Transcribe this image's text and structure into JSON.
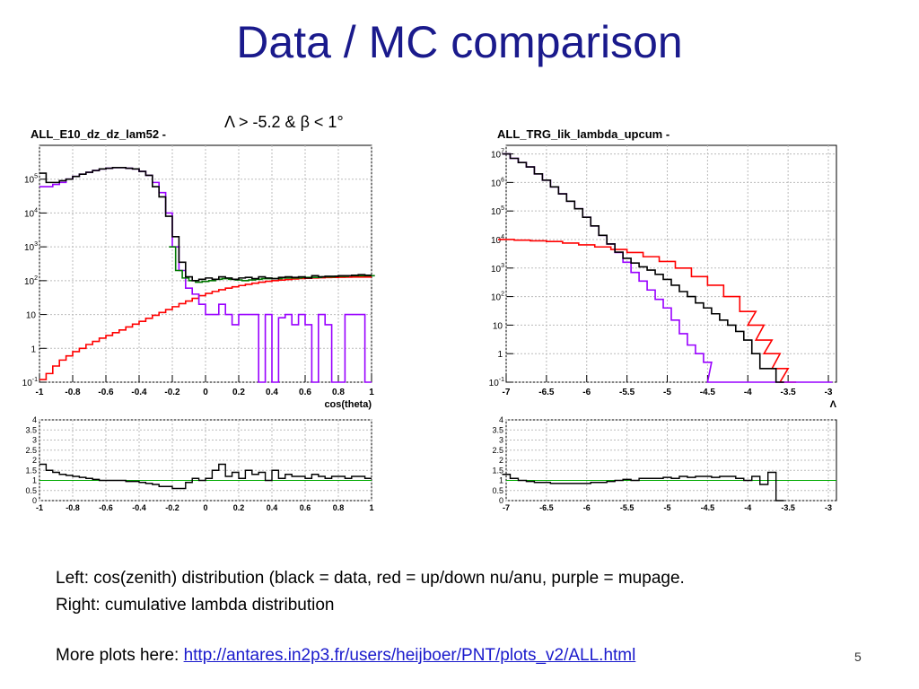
{
  "slide": {
    "title": "Data / MC comparison",
    "cut_label": "Λ > -5.2 & β < 1°",
    "caption_line1": "Left: cos(zenith) distribution (black = data, red = up/down nu/anu, purple = mupage.",
    "caption_line2": "Right: cumulative lambda distribution",
    "more_prefix": "More plots here: ",
    "more_link": "http://antares.in2p3.fr/users/heijboer/PNT/plots_v2/ALL.html",
    "page_number": "5"
  },
  "colors": {
    "title": "#1a1a8c",
    "data": "#000000",
    "neutrino": "#ff0000",
    "mupage": "#9900ff",
    "total": "#007700",
    "ratio_ref": "#00aa00"
  },
  "chart_data": [
    {
      "type": "line",
      "title": "ALL_E10_dz_dz_lam52 -",
      "xlabel": "cos(theta)",
      "scale_y": "log",
      "xlim": [
        -1,
        1
      ],
      "ylim": [
        0.1,
        1000000
      ],
      "x_ticks": [
        "-1",
        "-0.8",
        "-0.6",
        "-0.4",
        "-0.2",
        "0",
        "0.2",
        "0.4",
        "0.6",
        "0.8",
        "1"
      ],
      "y_ticks": [
        {
          "label": "10",
          "exp": "-1",
          "v": 0.1
        },
        {
          "label": "1",
          "exp": "",
          "v": 1
        },
        {
          "label": "10",
          "exp": "",
          "v": 10
        },
        {
          "label": "10",
          "exp": "2",
          "v": 100
        },
        {
          "label": "10",
          "exp": "3",
          "v": 1000
        },
        {
          "label": "10",
          "exp": "4",
          "v": 10000
        },
        {
          "label": "10",
          "exp": "5",
          "v": 100000
        }
      ],
      "grid": true,
      "series": [
        {
          "key": "red",
          "x": [
            -0.98,
            -0.94,
            -0.9,
            -0.86,
            -0.82,
            -0.78,
            -0.74,
            -0.7,
            -0.66,
            -0.62,
            -0.58,
            -0.54,
            -0.5,
            -0.46,
            -0.42,
            -0.38,
            -0.34,
            -0.3,
            -0.26,
            -0.22,
            -0.18,
            -0.14,
            -0.1,
            -0.06,
            -0.02,
            0.02,
            0.06,
            0.1,
            0.14,
            0.18,
            0.22,
            0.26,
            0.3,
            0.34,
            0.38,
            0.42,
            0.46,
            0.5,
            0.54,
            0.58,
            0.62,
            0.66,
            0.7,
            0.74,
            0.78,
            0.82,
            0.86,
            0.9,
            0.94,
            0.98
          ],
          "values": [
            0.12,
            0.18,
            0.3,
            0.45,
            0.6,
            0.8,
            1.0,
            1.3,
            1.6,
            2.0,
            2.4,
            2.9,
            3.5,
            4.3,
            5.2,
            6.3,
            7.7,
            9.5,
            11.5,
            14,
            17,
            21,
            25,
            30,
            36,
            42,
            48,
            54,
            60,
            66,
            72,
            78,
            84,
            90,
            96,
            100,
            104,
            108,
            112,
            116,
            118,
            120,
            122,
            124,
            125,
            126,
            127,
            128,
            128,
            128
          ]
        },
        {
          "key": "purple",
          "x": [
            -0.98,
            -0.94,
            -0.9,
            -0.86,
            -0.82,
            -0.78,
            -0.74,
            -0.7,
            -0.66,
            -0.62,
            -0.58,
            -0.54,
            -0.5,
            -0.46,
            -0.42,
            -0.38,
            -0.34,
            -0.3,
            -0.26,
            -0.22,
            -0.18,
            -0.14,
            -0.1,
            -0.06,
            -0.02,
            0.02,
            0.06,
            0.1,
            0.14,
            0.18,
            0.22,
            0.26,
            0.3,
            0.34,
            0.38,
            0.42,
            0.46,
            0.5,
            0.54,
            0.58,
            0.62,
            0.66,
            0.7,
            0.74,
            0.78,
            0.82,
            0.86,
            0.9,
            0.94,
            0.98
          ],
          "values": [
            60000,
            60000,
            70000,
            80000,
            100000,
            120000,
            140000,
            160000,
            180000,
            200000,
            210000,
            220000,
            220000,
            210000,
            200000,
            170000,
            130000,
            80000,
            40000,
            10000,
            1000,
            200,
            60,
            40,
            20,
            10,
            10,
            20,
            10,
            5,
            10,
            10,
            10,
            0.1,
            10,
            0.1,
            8,
            10,
            5,
            10,
            5,
            0.1,
            10,
            5,
            0.1,
            0.1,
            10,
            10,
            10,
            0.1
          ]
        },
        {
          "key": "green",
          "x": [
            -0.2,
            -0.16,
            -0.12,
            -0.08,
            -0.04,
            0,
            0.04,
            0.08,
            0.12,
            0.16,
            0.2,
            0.24,
            0.28,
            0.32,
            0.36,
            0.4,
            0.44,
            0.48,
            0.52,
            0.56,
            0.6,
            0.64,
            0.68,
            0.72,
            0.76,
            0.8,
            0.84,
            0.88,
            0.92,
            0.96,
            1.0
          ],
          "values": [
            1000,
            200,
            120,
            100,
            90,
            95,
            100,
            110,
            115,
            110,
            105,
            100,
            105,
            110,
            115,
            115,
            115,
            120,
            120,
            120,
            125,
            125,
            125,
            130,
            130,
            135,
            135,
            140,
            140,
            140,
            140
          ]
        },
        {
          "key": "black",
          "x": [
            -0.98,
            -0.94,
            -0.9,
            -0.86,
            -0.82,
            -0.78,
            -0.74,
            -0.7,
            -0.66,
            -0.62,
            -0.58,
            -0.54,
            -0.5,
            -0.46,
            -0.42,
            -0.38,
            -0.34,
            -0.3,
            -0.26,
            -0.22,
            -0.18,
            -0.14,
            -0.1,
            -0.06,
            -0.02,
            0.02,
            0.06,
            0.1,
            0.14,
            0.18,
            0.22,
            0.26,
            0.3,
            0.34,
            0.38,
            0.42,
            0.46,
            0.5,
            0.54,
            0.58,
            0.62,
            0.66,
            0.7,
            0.74,
            0.78,
            0.82,
            0.86,
            0.9,
            0.94,
            0.98
          ],
          "values": [
            150000,
            80000,
            80000,
            90000,
            100000,
            120000,
            140000,
            160000,
            180000,
            200000,
            210000,
            220000,
            220000,
            210000,
            200000,
            170000,
            130000,
            60000,
            30000,
            8000,
            2000,
            350,
            130,
            100,
            110,
            120,
            110,
            130,
            120,
            110,
            120,
            125,
            115,
            130,
            120,
            115,
            125,
            130,
            125,
            130,
            120,
            140,
            130,
            135,
            135,
            140,
            140,
            145,
            150,
            145
          ]
        }
      ],
      "ratio": {
        "ylim": [
          0,
          4
        ],
        "y_ticks": [
          "0",
          "0.5",
          "1",
          "1.5",
          "2",
          "2.5",
          "3",
          "3.5",
          "4"
        ],
        "x_ticks": [
          "-1",
          "-0.8",
          "-0.6",
          "-0.4",
          "-0.2",
          "0",
          "0.2",
          "0.4",
          "0.6",
          "0.8",
          "1"
        ],
        "x": [
          -0.98,
          -0.94,
          -0.9,
          -0.86,
          -0.82,
          -0.78,
          -0.74,
          -0.7,
          -0.66,
          -0.62,
          -0.58,
          -0.54,
          -0.5,
          -0.46,
          -0.42,
          -0.38,
          -0.34,
          -0.3,
          -0.26,
          -0.22,
          -0.18,
          -0.14,
          -0.1,
          -0.06,
          -0.02,
          0.02,
          0.06,
          0.1,
          0.14,
          0.18,
          0.22,
          0.26,
          0.3,
          0.34,
          0.38,
          0.42,
          0.46,
          0.5,
          0.54,
          0.58,
          0.62,
          0.66,
          0.7,
          0.74,
          0.78,
          0.82,
          0.86,
          0.9,
          0.94,
          0.98
        ],
        "values": [
          1.8,
          1.5,
          1.4,
          1.3,
          1.25,
          1.2,
          1.15,
          1.1,
          1.05,
          1.0,
          1.0,
          1.0,
          1.0,
          0.95,
          0.95,
          0.9,
          0.85,
          0.8,
          0.7,
          0.7,
          0.6,
          0.6,
          0.9,
          1.1,
          1.0,
          1.1,
          1.5,
          1.8,
          1.2,
          1.4,
          1.1,
          1.5,
          1.3,
          1.4,
          1.0,
          1.5,
          1.1,
          1.3,
          1.2,
          1.2,
          1.1,
          1.3,
          1.2,
          1.1,
          1.2,
          1.2,
          1.1,
          1.2,
          1.2,
          1.1
        ]
      }
    },
    {
      "type": "line",
      "title": "ALL_TRG_lik_lambda_upcum -",
      "xlabel": "Λ",
      "scale_y": "log",
      "xlim": [
        -7,
        -2.9
      ],
      "ylim": [
        0.1,
        20000000
      ],
      "x_ticks": [
        "-7",
        "-6.5",
        "-6",
        "-5.5",
        "-5",
        "-4.5",
        "-4",
        "-3.5",
        "-3"
      ],
      "y_ticks": [
        {
          "label": "10",
          "exp": "-1",
          "v": 0.1
        },
        {
          "label": "1",
          "exp": "",
          "v": 1
        },
        {
          "label": "10",
          "exp": "",
          "v": 10
        },
        {
          "label": "10",
          "exp": "2",
          "v": 100
        },
        {
          "label": "10",
          "exp": "3",
          "v": 1000
        },
        {
          "label": "10",
          "exp": "4",
          "v": 10000
        },
        {
          "label": "10",
          "exp": "5",
          "v": 100000
        },
        {
          "label": "10",
          "exp": "6",
          "v": 1000000
        },
        {
          "label": "10",
          "exp": "7",
          "v": 10000000
        }
      ],
      "grid": true,
      "series": [
        {
          "key": "red",
          "x": [
            -7,
            -6.8,
            -6.6,
            -6.4,
            -6.2,
            -6,
            -5.8,
            -5.6,
            -5.4,
            -5.2,
            -5,
            -4.8,
            -4.6,
            -4.4,
            -4.2,
            -4.0,
            -3.9,
            -3.8,
            -3.7,
            -3.6,
            -3.5
          ],
          "values": [
            10000,
            9500,
            9000,
            8500,
            7500,
            6500,
            5500,
            4500,
            3500,
            2500,
            1700,
            1000,
            500,
            250,
            100,
            30,
            10,
            3,
            1,
            0.3,
            0.1
          ]
        },
        {
          "key": "purple",
          "x": [
            -7,
            -6.9,
            -6.8,
            -6.7,
            -6.6,
            -6.5,
            -6.4,
            -6.3,
            -6.2,
            -6.1,
            -6,
            -5.9,
            -5.8,
            -5.7,
            -5.6,
            -5.5,
            -5.4,
            -5.3,
            -5.2,
            -5.1,
            -5,
            -4.9,
            -4.8,
            -4.7,
            -4.6,
            -4.5,
            -4.45,
            -3.5,
            -3.0
          ],
          "values": [
            10000000,
            7000000,
            5000000,
            3500000,
            2000000,
            1200000,
            700000,
            400000,
            220000,
            120000,
            60000,
            30000,
            14000,
            7000,
            3500,
            1600,
            700,
            350,
            170,
            80,
            40,
            15,
            5,
            2,
            1,
            0.5,
            0.1,
            0.1,
            0.1
          ]
        },
        {
          "key": "black",
          "x": [
            -7,
            -6.9,
            -6.8,
            -6.7,
            -6.6,
            -6.5,
            -6.4,
            -6.3,
            -6.2,
            -6.1,
            -6,
            -5.9,
            -5.8,
            -5.7,
            -5.6,
            -5.5,
            -5.4,
            -5.3,
            -5.2,
            -5.1,
            -5,
            -4.9,
            -4.8,
            -4.7,
            -4.6,
            -4.5,
            -4.4,
            -4.3,
            -4.2,
            -4.1,
            -4.0,
            -3.9,
            -3.8,
            -3.7,
            -3.6
          ],
          "values": [
            10000000,
            7000000,
            5000000,
            3500000,
            2000000,
            1200000,
            700000,
            400000,
            220000,
            120000,
            60000,
            30000,
            14000,
            7000,
            3600,
            2200,
            1500,
            1100,
            850,
            600,
            400,
            250,
            150,
            100,
            60,
            40,
            25,
            15,
            10,
            6,
            3,
            1,
            0.3,
            0.3,
            0.1
          ]
        }
      ],
      "ratio": {
        "ylim": [
          0,
          4
        ],
        "y_ticks": [
          "0",
          "0.5",
          "1",
          "1.5",
          "2",
          "2.5",
          "3",
          "3.5",
          "4"
        ],
        "x_ticks": [
          "-7",
          "-6.5",
          "-6",
          "-5.5",
          "-5",
          "-4.5",
          "-4",
          "-3.5",
          "-3"
        ],
        "x": [
          -7,
          -6.9,
          -6.8,
          -6.7,
          -6.6,
          -6.5,
          -6.4,
          -6.3,
          -6.2,
          -6.1,
          -6,
          -5.9,
          -5.8,
          -5.7,
          -5.6,
          -5.5,
          -5.4,
          -5.3,
          -5.2,
          -5.1,
          -5,
          -4.9,
          -4.8,
          -4.7,
          -4.6,
          -4.5,
          -4.4,
          -4.3,
          -4.2,
          -4.1,
          -4.0,
          -3.9,
          -3.8,
          -3.7,
          -3.6
        ],
        "values": [
          1.3,
          1.1,
          1.0,
          0.95,
          0.9,
          0.9,
          0.85,
          0.85,
          0.85,
          0.85,
          0.85,
          0.9,
          0.9,
          0.95,
          1.0,
          1.05,
          1.0,
          1.1,
          1.1,
          1.1,
          1.15,
          1.1,
          1.2,
          1.15,
          1.2,
          1.2,
          1.15,
          1.2,
          1.2,
          1.1,
          1.0,
          1.2,
          0.8,
          1.4,
          0
        ]
      }
    }
  ]
}
